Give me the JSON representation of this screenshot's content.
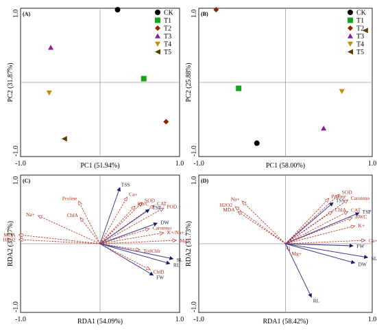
{
  "chart_data": [
    {
      "panel": "(A)",
      "type": "scatter",
      "xlabel": "PC1 (51.94%)",
      "ylabel": "PC2 (31.87%)",
      "xlim": [
        -1.0,
        1.0
      ],
      "ylim": [
        -1.0,
        1.0
      ],
      "x_ticks": [
        "-1.0",
        "1.0"
      ],
      "y_ticks": [
        "-1.0",
        "1.0"
      ],
      "legend_position": "top-right",
      "series": [
        {
          "name": "CK",
          "marker": "circle",
          "color": "#000000",
          "points": [
            [
              0.22,
              0.98
            ]
          ]
        },
        {
          "name": "T1",
          "marker": "square",
          "color": "#1aa31a",
          "points": [
            [
              0.55,
              0.05
            ]
          ]
        },
        {
          "name": "T2",
          "marker": "diamond",
          "color": "#8b2500",
          "points": [
            [
              0.83,
              -0.53
            ]
          ]
        },
        {
          "name": "T3",
          "marker": "triangle-up",
          "color": "#8b1aa6",
          "points": [
            [
              -0.62,
              0.47
            ]
          ]
        },
        {
          "name": "T4",
          "marker": "triangle-down",
          "color": "#c88a00",
          "points": [
            [
              -0.64,
              -0.14
            ]
          ]
        },
        {
          "name": "T5",
          "marker": "triangle-left",
          "color": "#5c3a00",
          "points": [
            [
              -0.45,
              -0.76
            ]
          ]
        }
      ]
    },
    {
      "panel": "(B)",
      "type": "scatter",
      "xlabel": "PC1 (58.00%)",
      "ylabel": "PC2 (25.88%)",
      "xlim": [
        -1.0,
        1.0
      ],
      "ylim": [
        -1.0,
        1.0
      ],
      "x_ticks": [
        "-1.0",
        "1.0"
      ],
      "y_ticks": [
        "-1.0",
        "1.0"
      ],
      "legend_position": "top-right",
      "series": [
        {
          "name": "CK",
          "marker": "circle",
          "color": "#000000",
          "points": [
            [
              -0.33,
              -0.82
            ]
          ]
        },
        {
          "name": "T1",
          "marker": "square",
          "color": "#1aa31a",
          "points": [
            [
              -0.54,
              -0.08
            ]
          ]
        },
        {
          "name": "T2",
          "marker": "diamond",
          "color": "#8b2500",
          "points": [
            [
              -0.8,
              0.98
            ]
          ]
        },
        {
          "name": "T3",
          "marker": "triangle-up",
          "color": "#8b1aa6",
          "points": [
            [
              0.44,
              -0.62
            ]
          ]
        },
        {
          "name": "T4",
          "marker": "triangle-down",
          "color": "#c88a00",
          "points": [
            [
              0.65,
              -0.12
            ]
          ]
        },
        {
          "name": "T5",
          "marker": "triangle-left",
          "color": "#5c3a00",
          "points": [
            [
              0.92,
              0.7
            ]
          ]
        }
      ]
    },
    {
      "panel": "(C)",
      "type": "biplot",
      "xlabel": "RDA1 (54.09%)",
      "ylabel": "RDA2 (37.27%)",
      "xlim": [
        -1.0,
        1.0
      ],
      "ylim": [
        -1.0,
        1.0
      ],
      "x_ticks": [
        "-1.0",
        "1.0"
      ],
      "y_ticks": [
        "-1.0",
        "1.0"
      ],
      "vectors": [
        {
          "label": "TSS",
          "x": 0.25,
          "y": 0.82,
          "group": "response"
        },
        {
          "label": "Proline",
          "x": -0.27,
          "y": 0.62,
          "group": "explanatory"
        },
        {
          "label": "Ca+",
          "x": 0.34,
          "y": 0.68,
          "group": "explanatory"
        },
        {
          "label": "SOD",
          "x": 0.53,
          "y": 0.6,
          "group": "explanatory"
        },
        {
          "label": "RWC",
          "x": 0.44,
          "y": 0.55,
          "group": "explanatory"
        },
        {
          "label": "CAT",
          "x": 0.68,
          "y": 0.56,
          "group": "explanatory"
        },
        {
          "label": "TSP",
          "x": 0.62,
          "y": 0.5,
          "group": "response"
        },
        {
          "label": "POD",
          "x": 0.8,
          "y": 0.52,
          "group": "explanatory"
        },
        {
          "label": "ChlA",
          "x": -0.25,
          "y": 0.38,
          "group": "explanatory"
        },
        {
          "label": "Na+",
          "x": -0.78,
          "y": 0.41,
          "group": "explanatory"
        },
        {
          "label": "DW",
          "x": 0.72,
          "y": 0.3,
          "group": "response"
        },
        {
          "label": "Caroteno",
          "x": 0.62,
          "y": 0.22,
          "group": "explanatory"
        },
        {
          "label": "K+/Na+",
          "x": 0.8,
          "y": 0.16,
          "group": "explanatory"
        },
        {
          "label": "MDA",
          "x": -1.02,
          "y": 0.13,
          "group": "explanatory"
        },
        {
          "label": "H2O2",
          "x": -1.02,
          "y": 0.06,
          "group": "explanatory"
        },
        {
          "label": "Mg+",
          "x": 0.96,
          "y": 0.05,
          "group": "explanatory"
        },
        {
          "label": "TotlChlr",
          "x": 0.5,
          "y": -0.09,
          "group": "explanatory"
        },
        {
          "label": "SL",
          "x": 0.92,
          "y": -0.22,
          "group": "response"
        },
        {
          "label": "RL",
          "x": 0.88,
          "y": -0.29,
          "group": "response"
        },
        {
          "label": "ChlB",
          "x": 0.63,
          "y": -0.38,
          "group": "explanatory"
        },
        {
          "label": "FW",
          "x": 0.67,
          "y": -0.46,
          "group": "response"
        }
      ]
    },
    {
      "panel": "(D)",
      "type": "biplot",
      "xlabel": "RDA1 (58.42%)",
      "ylabel": "RDA2 (31.73%)",
      "xlim": [
        -1.0,
        1.0
      ],
      "ylim": [
        -1.0,
        1.0
      ],
      "x_ticks": [
        "-1.0",
        "1.0"
      ],
      "y_ticks": [
        "-1.0",
        "1.0"
      ],
      "vectors": [
        {
          "label": "Na+",
          "x": -0.5,
          "y": 0.62,
          "group": "explanatory"
        },
        {
          "label": "H2O2",
          "x": -0.58,
          "y": 0.54,
          "group": "explanatory"
        },
        {
          "label": "MDA",
          "x": -0.55,
          "y": 0.47,
          "group": "explanatory"
        },
        {
          "label": "SOD",
          "x": 0.62,
          "y": 0.72,
          "group": "explanatory"
        },
        {
          "label": "Proline",
          "x": 0.5,
          "y": 0.66,
          "group": "explanatory"
        },
        {
          "label": "Caroteno",
          "x": 0.72,
          "y": 0.64,
          "group": "explanatory"
        },
        {
          "label": "TSS",
          "x": 0.55,
          "y": 0.6,
          "group": "response"
        },
        {
          "label": "ChlA",
          "x": 0.54,
          "y": 0.47,
          "group": "explanatory"
        },
        {
          "label": "CAT",
          "x": 0.72,
          "y": 0.47,
          "group": "explanatory"
        },
        {
          "label": "TSP",
          "x": 0.85,
          "y": 0.45,
          "group": "response"
        },
        {
          "label": "RWC",
          "x": 0.77,
          "y": 0.38,
          "group": "explanatory"
        },
        {
          "label": "K+",
          "x": 0.8,
          "y": 0.26,
          "group": "explanatory"
        },
        {
          "label": "Ca+",
          "x": 0.92,
          "y": 0.05,
          "group": "explanatory"
        },
        {
          "label": "FW",
          "x": 0.78,
          "y": -0.03,
          "group": "response"
        },
        {
          "label": "Mg+",
          "x": 0.05,
          "y": -0.1,
          "group": "explanatory"
        },
        {
          "label": "SL",
          "x": 0.95,
          "y": -0.2,
          "group": "response"
        },
        {
          "label": "DW",
          "x": 0.8,
          "y": -0.28,
          "group": "response"
        },
        {
          "label": "RL",
          "x": 0.3,
          "y": -0.78,
          "group": "response"
        }
      ]
    }
  ]
}
